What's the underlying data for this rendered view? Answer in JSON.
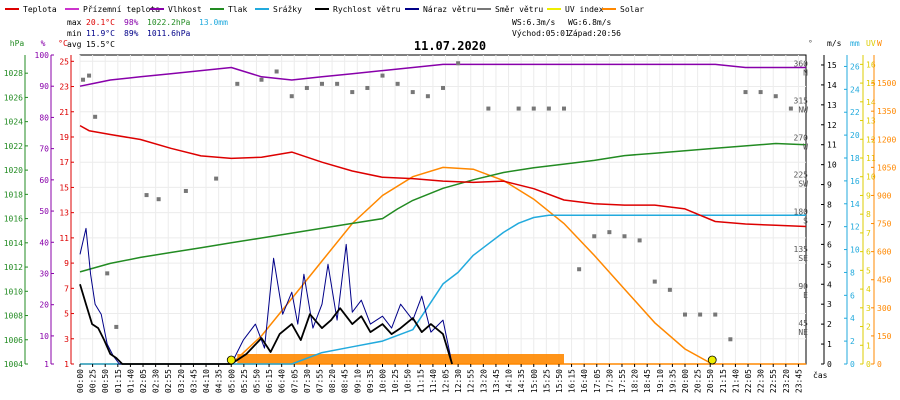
{
  "chart_data": {
    "type": "line",
    "title": "11.07.2020",
    "legend": [
      {
        "name": "Teplota",
        "color": "#dd0000"
      },
      {
        "name": "Přízemní teplota",
        "color": "#cc33cc"
      },
      {
        "name": "Vlhkost",
        "color": "#8800aa"
      },
      {
        "name": "Tlak",
        "color": "#228b22"
      },
      {
        "name": "Srážky",
        "color": "#22aadd"
      },
      {
        "name": "Rychlost větru",
        "color": "#000000"
      },
      {
        "name": "Náraz větru",
        "color": "#000088"
      },
      {
        "name": "Směr větru",
        "color": "#777777"
      },
      {
        "name": "UV index",
        "color": "#eeee00"
      },
      {
        "name": "Solar",
        "color": "#ff8800"
      }
    ],
    "stats": {
      "max_label": "max",
      "max_temp": "20.1°C",
      "max_hum": "98%",
      "max_press": "1022.2hPa",
      "rain": "13.0mm",
      "min_label": "min",
      "min_temp": "11.9°C",
      "min_hum": "89%",
      "min_press": "1011.6hPa",
      "avg_label": "avg",
      "avg_temp": "15.5°C"
    },
    "wind_info": {
      "ws": "WS:6.3m/s",
      "wg": "WG:6.8m/s",
      "sunrise": "Východ:05:01",
      "sunset": "Západ:20:56"
    },
    "axes": {
      "hpa": {
        "unit": "hPa",
        "color": "#228b22",
        "ticks": [
          "1004",
          "1006",
          "1008",
          "1010",
          "1012",
          "1014",
          "1016",
          "1018",
          "1020",
          "1022",
          "1024",
          "1026",
          "1028"
        ]
      },
      "pct": {
        "unit": "%",
        "color": "#8800aa",
        "ticks": [
          "1",
          "10",
          "20",
          "30",
          "40",
          "50",
          "60",
          "70",
          "80",
          "90",
          "100"
        ]
      },
      "degc": {
        "unit": "°C",
        "color": "#dd0000",
        "ticks": [
          "1",
          "3",
          "5",
          "7",
          "9",
          "11",
          "13",
          "15",
          "17",
          "19",
          "21",
          "23",
          "25"
        ]
      },
      "deg": {
        "unit": "°",
        "color": "#555555",
        "ticks": [
          {
            "v": 0,
            "t": ""
          },
          {
            "v": 45,
            "t": "45"
          },
          {
            "v": 90,
            "t": "90"
          },
          {
            "v": 135,
            "t": "135"
          },
          {
            "v": 180,
            "t": "180"
          },
          {
            "v": 225,
            "t": "225"
          },
          {
            "v": 270,
            "t": "270"
          },
          {
            "v": 315,
            "t": "315"
          },
          {
            "v": 360,
            "t": "360"
          }
        ],
        "dirs": [
          {
            "v": 45,
            "t": "NE"
          },
          {
            "v": 90,
            "t": "E"
          },
          {
            "v": 135,
            "t": "SE"
          },
          {
            "v": 180,
            "t": "S"
          },
          {
            "v": 225,
            "t": "SW"
          },
          {
            "v": 270,
            "t": "W"
          },
          {
            "v": 315,
            "t": "NW"
          },
          {
            "v": 360,
            "t": "N"
          }
        ]
      },
      "ms": {
        "unit": "m/s",
        "color": "#000000",
        "ticks": [
          "0",
          "1",
          "2",
          "3",
          "4",
          "5",
          "6",
          "7",
          "8",
          "9",
          "10",
          "11",
          "12",
          "13",
          "14",
          "15"
        ]
      },
      "mm": {
        "unit": "mm",
        "color": "#22aadd",
        "ticks": [
          "0",
          "2",
          "4",
          "6",
          "8",
          "10",
          "12",
          "14",
          "16",
          "18",
          "20",
          "22",
          "24",
          "26"
        ]
      },
      "uv": {
        "unit": "UV",
        "color": "#ddcc00",
        "ticks": [
          "0",
          "1",
          "2",
          "3",
          "4",
          "5",
          "6",
          "7",
          "8",
          "9",
          "10",
          "11",
          "12",
          "13",
          "14",
          "15",
          "16"
        ]
      },
      "w": {
        "unit": "W",
        "color": "#ff8800",
        "ticks": [
          "0",
          "150",
          "300",
          "450",
          "600",
          "750",
          "900",
          "1050",
          "1200",
          "1350",
          "1500"
        ]
      }
    },
    "x_label": "čas",
    "x_ticks": [
      "00:00",
      "00:25",
      "00:50",
      "01:15",
      "01:40",
      "02:05",
      "02:30",
      "02:55",
      "03:20",
      "03:45",
      "04:10",
      "04:35",
      "05:00",
      "05:25",
      "05:50",
      "06:15",
      "06:40",
      "07:05",
      "07:30",
      "07:55",
      "08:20",
      "08:45",
      "09:10",
      "09:35",
      "10:00",
      "10:25",
      "10:50",
      "11:15",
      "11:40",
      "12:05",
      "12:30",
      "12:55",
      "13:20",
      "13:45",
      "14:10",
      "14:35",
      "15:00",
      "15:25",
      "15:50",
      "16:15",
      "16:40",
      "17:05",
      "17:30",
      "17:55",
      "18:20",
      "18:45",
      "19:10",
      "19:35",
      "20:00",
      "20:25",
      "20:50",
      "21:15",
      "21:40",
      "22:05",
      "22:30",
      "22:55",
      "23:20",
      "23:45"
    ],
    "temperature": {
      "x": [
        0,
        0.3,
        1,
        2,
        3,
        4,
        5,
        6,
        7,
        8,
        9,
        10,
        11,
        12,
        13,
        14,
        15,
        16,
        17,
        18,
        19,
        20,
        21,
        22,
        23,
        24
      ],
      "y": [
        19.9,
        19.5,
        19.2,
        18.8,
        18.1,
        17.5,
        17.3,
        17.4,
        17.8,
        17.0,
        16.3,
        15.8,
        15.7,
        15.5,
        15.4,
        15.5,
        14.9,
        14.0,
        13.7,
        13.6,
        13.6,
        13.3,
        12.3,
        12.1,
        12.0,
        11.9
      ]
    },
    "humidity": {
      "x": [
        0,
        0.5,
        1,
        2,
        3,
        4,
        5,
        6,
        7,
        8,
        9,
        10,
        11,
        12,
        13,
        14,
        15,
        16,
        17,
        18,
        19,
        20,
        21,
        22,
        23,
        24
      ],
      "y": [
        90,
        91,
        92,
        93,
        94,
        95,
        96,
        93,
        92,
        93,
        94,
        95,
        96,
        97,
        97,
        97,
        97,
        97,
        97,
        97,
        97,
        97,
        97,
        96,
        96,
        96
      ]
    },
    "pressure": {
      "x": [
        0,
        1,
        2,
        3,
        4,
        5,
        6,
        7,
        8,
        9,
        10,
        10.5,
        11,
        12,
        13,
        14,
        15,
        16,
        17,
        18,
        19,
        20,
        21,
        22,
        23,
        24
      ],
      "y": [
        1011.6,
        1012.3,
        1012.8,
        1013.2,
        1013.6,
        1014.0,
        1014.4,
        1014.8,
        1015.2,
        1015.6,
        1016.0,
        1016.8,
        1017.5,
        1018.5,
        1019.2,
        1019.8,
        1020.2,
        1020.5,
        1020.8,
        1021.2,
        1021.4,
        1021.6,
        1021.8,
        1022.0,
        1022.2,
        1022.1
      ]
    },
    "rain": {
      "x": [
        0,
        7,
        8,
        9,
        10,
        11,
        11.5,
        12,
        12.5,
        13,
        13.5,
        14,
        14.5,
        15,
        15.5,
        16,
        17,
        24
      ],
      "y": [
        0,
        0,
        1.0,
        1.5,
        2.0,
        3.0,
        5.0,
        7.0,
        8.0,
        9.5,
        10.5,
        11.5,
        12.3,
        12.8,
        13.0,
        13.0,
        13.0,
        13.0
      ]
    },
    "wind_speed": {
      "x": [
        0,
        0.2,
        0.4,
        0.6,
        0.8,
        1.0,
        1.2,
        1.4,
        5,
        5.5,
        6,
        6.3,
        6.6,
        7,
        7.3,
        7.6,
        8,
        8.3,
        8.6,
        9,
        9.3,
        9.6,
        10,
        10.3,
        10.6,
        11,
        11.3,
        11.6,
        12,
        12.3
      ],
      "y": [
        4.0,
        3.0,
        2.0,
        1.8,
        1.2,
        0.5,
        0.3,
        0,
        0,
        0.5,
        1.3,
        0.6,
        1.5,
        2.0,
        1.2,
        2.5,
        1.8,
        2.2,
        2.8,
        2.0,
        2.4,
        1.6,
        2.0,
        1.5,
        1.8,
        2.3,
        1.6,
        2.0,
        1.5,
        0
      ]
    },
    "wind_gust": {
      "x": [
        0,
        0.2,
        0.35,
        0.5,
        0.7,
        0.9,
        1.1,
        1.3,
        5,
        5.4,
        5.8,
        6.1,
        6.4,
        6.7,
        7,
        7.2,
        7.4,
        7.7,
        8,
        8.2,
        8.5,
        8.8,
        9,
        9.3,
        9.6,
        10,
        10.3,
        10.6,
        11,
        11.3,
        11.6,
        12,
        12.3
      ],
      "y": [
        5.5,
        6.8,
        4.5,
        3.0,
        2.5,
        1.0,
        0.4,
        0,
        0,
        1.2,
        2.0,
        0.8,
        5.3,
        2.5,
        3.6,
        2.0,
        4.5,
        1.8,
        3.0,
        5.0,
        2.2,
        6.0,
        2.6,
        3.2,
        2.0,
        2.4,
        1.8,
        3.0,
        2.2,
        3.4,
        1.6,
        2.2,
        0
      ]
    },
    "wind_dir": {
      "x": [
        0.1,
        0.3,
        0.5,
        0.9,
        1.2,
        2.2,
        2.6,
        3.5,
        4.5,
        5.2,
        6,
        6.5,
        7,
        7.5,
        8,
        8.5,
        9,
        9.5,
        10,
        10.5,
        11,
        11.5,
        12,
        12.5,
        13.5,
        14.5,
        15,
        15.5,
        16,
        16.5,
        17,
        17.5,
        18,
        18.5,
        19,
        19.5,
        20,
        20.5,
        21,
        21.5,
        22,
        22.5,
        23,
        23.5
      ],
      "y": [
        345,
        350,
        300,
        110,
        45,
        205,
        200,
        210,
        225,
        340,
        345,
        355,
        325,
        335,
        340,
        340,
        330,
        335,
        350,
        340,
        330,
        325,
        335,
        365,
        310,
        310,
        310,
        310,
        310,
        115,
        155,
        160,
        155,
        150,
        100,
        90,
        60,
        60,
        60,
        30,
        330,
        330,
        325,
        310
      ]
    },
    "uv_index": {
      "x": [
        5.0,
        20.9
      ],
      "y": [
        0.1,
        0.1
      ]
    },
    "solar": {
      "x": [
        0,
        5,
        6,
        7,
        8,
        9,
        10,
        11,
        12,
        13,
        14,
        15,
        16,
        17,
        18,
        19,
        20,
        20.9,
        21,
        24
      ],
      "y": [
        0,
        0,
        150,
        350,
        550,
        750,
        900,
        1000,
        1050,
        1040,
        980,
        880,
        750,
        580,
        400,
        220,
        80,
        0,
        0,
        0
      ]
    }
  }
}
